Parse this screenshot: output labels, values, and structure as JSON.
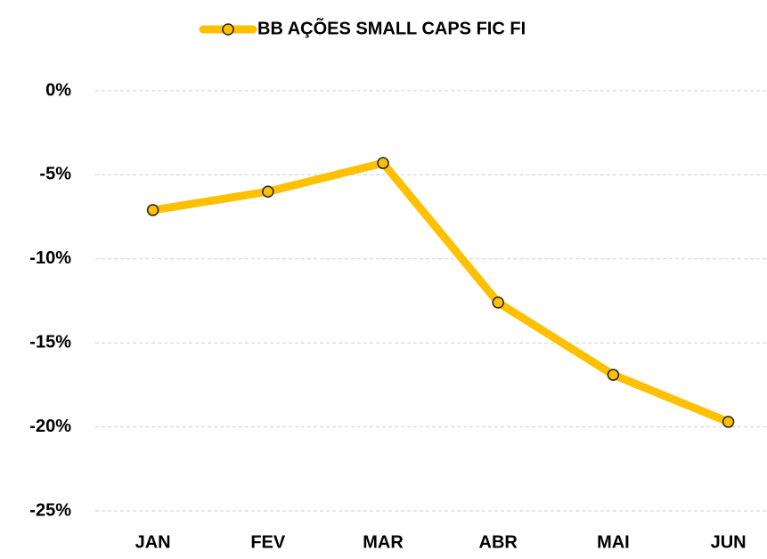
{
  "chart_data": {
    "type": "line",
    "categories": [
      "JAN",
      "FEV",
      "MAR",
      "ABR",
      "MAI",
      "JUN"
    ],
    "series": [
      {
        "name": "BB AÇÕES SMALL CAPS FIC FI",
        "color": "#FFC000",
        "values": [
          -7.1,
          -6.0,
          -4.3,
          -12.6,
          -16.9,
          -19.7
        ]
      }
    ],
    "ylim": [
      -25,
      0
    ],
    "yticks": [
      {
        "value": 0,
        "label": "0%"
      },
      {
        "value": -5,
        "label": "-5%"
      },
      {
        "value": -10,
        "label": "-10%"
      },
      {
        "value": -15,
        "label": "-15%"
      },
      {
        "value": -20,
        "label": "-20%"
      },
      {
        "value": -25,
        "label": "-25%"
      }
    ],
    "grid": true,
    "legend": "top"
  }
}
